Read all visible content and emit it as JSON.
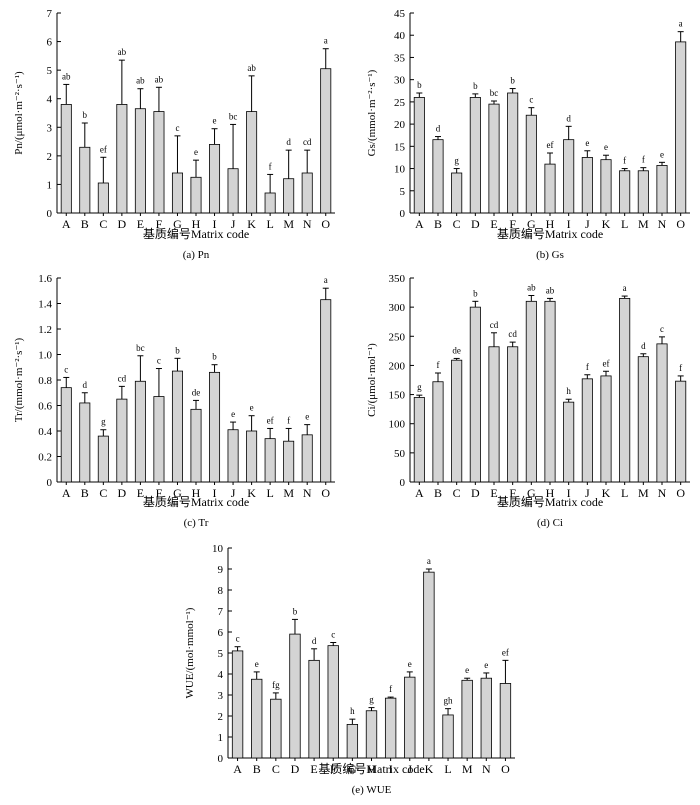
{
  "chart_data": [
    {
      "type": "bar",
      "caption": "(a) Pn",
      "y_label": "Pn/(μmol·m⁻²·s⁻¹)",
      "x_label": "基质编号Matrix code",
      "categories": [
        "A",
        "B",
        "C",
        "D",
        "E",
        "F",
        "G",
        "H",
        "I",
        "J",
        "K",
        "L",
        "M",
        "N",
        "O"
      ],
      "values": [
        3.8,
        2.3,
        1.05,
        3.8,
        3.65,
        3.55,
        1.4,
        1.25,
        2.4,
        1.55,
        3.55,
        0.7,
        1.2,
        1.4,
        5.05
      ],
      "errors": [
        0.7,
        0.85,
        0.9,
        1.55,
        0.7,
        0.85,
        1.3,
        0.6,
        0.55,
        1.55,
        1.25,
        0.65,
        1.0,
        0.8,
        0.7
      ],
      "letters": [
        "ab",
        "b",
        "ef",
        "ab",
        "ab",
        "ab",
        "c",
        "e",
        "e",
        "bc",
        "ab",
        "f",
        "d",
        "cd",
        "a"
      ],
      "ylim": [
        0,
        7
      ],
      "yticks": [
        0,
        1,
        2,
        3,
        4,
        5,
        6,
        7
      ],
      "color": "#d4d4d4"
    },
    {
      "type": "bar",
      "caption": "(b) Gs",
      "y_label": "Gs/(mmol·m⁻²·s⁻¹)",
      "x_label": "基质编号Matrix code",
      "categories": [
        "A",
        "B",
        "C",
        "D",
        "E",
        "F",
        "G",
        "H",
        "I",
        "J",
        "K",
        "L",
        "M",
        "N",
        "O"
      ],
      "values": [
        26,
        16.5,
        9,
        26,
        24.5,
        27,
        22,
        11,
        16.5,
        12.5,
        12,
        9.5,
        9.5,
        10.7,
        38.5
      ],
      "errors": [
        1,
        0.7,
        1,
        0.8,
        0.7,
        1,
        1.7,
        2.5,
        3,
        1.5,
        1,
        0.5,
        0.7,
        0.7,
        2.3
      ],
      "letters": [
        "b",
        "d",
        "g",
        "b",
        "bc",
        "b",
        "c",
        "ef",
        "d",
        "e",
        "e",
        "f",
        "f",
        "e",
        "a"
      ],
      "ylim": [
        0,
        45
      ],
      "yticks": [
        0,
        5,
        10,
        15,
        20,
        25,
        30,
        35,
        40,
        45
      ],
      "color": "#d4d4d4"
    },
    {
      "type": "bar",
      "caption": "(c) Tr",
      "y_label": "Tr/(mmol·m⁻²·s⁻¹)",
      "x_label": "基质编号Matrix code",
      "categories": [
        "A",
        "B",
        "C",
        "D",
        "E",
        "F",
        "G",
        "H",
        "I",
        "J",
        "K",
        "L",
        "M",
        "N",
        "O"
      ],
      "values": [
        0.74,
        0.62,
        0.36,
        0.65,
        0.79,
        0.67,
        0.87,
        0.57,
        0.86,
        0.41,
        0.4,
        0.34,
        0.32,
        0.37,
        1.43
      ],
      "errors": [
        0.08,
        0.08,
        0.05,
        0.1,
        0.2,
        0.22,
        0.1,
        0.07,
        0.06,
        0.06,
        0.12,
        0.08,
        0.1,
        0.08,
        0.09
      ],
      "letters": [
        "c",
        "d",
        "g",
        "cd",
        "bc",
        "c",
        "b",
        "de",
        "b",
        "e",
        "e",
        "ef",
        "f",
        "e",
        "a"
      ],
      "ylim": [
        0,
        1.6
      ],
      "yticks": [
        0,
        0.2,
        0.4,
        0.6,
        0.8,
        {
          "value": 1,
          "label": "1.0"
        },
        1.2,
        1.4,
        1.6
      ],
      "color": "#d4d4d4"
    },
    {
      "type": "bar",
      "caption": "(d) Ci",
      "y_label": "Ci/(μmol·mol⁻¹)",
      "x_label": "基质编号Matrix code",
      "categories": [
        "A",
        "B",
        "C",
        "D",
        "E",
        "F",
        "G",
        "H",
        "I",
        "J",
        "K",
        "L",
        "M",
        "N",
        "O"
      ],
      "values": [
        145,
        172,
        209,
        300,
        232,
        232,
        310,
        310,
        137,
        177,
        182,
        315,
        215,
        237,
        173
      ],
      "errors": [
        4,
        15,
        3,
        10,
        24,
        8,
        10,
        5,
        5,
        7,
        8,
        4,
        5,
        12,
        9
      ],
      "letters": [
        "g",
        "f",
        "de",
        "b",
        "cd",
        "cd",
        "ab",
        "ab",
        "h",
        "f",
        "ef",
        "a",
        "d",
        "c",
        "f"
      ],
      "ylim": [
        0,
        350
      ],
      "yticks": [
        0,
        50,
        100,
        150,
        200,
        250,
        300,
        350
      ],
      "color": "#d4d4d4"
    },
    {
      "type": "bar",
      "caption": "(e) WUE",
      "y_label": "WUE/(mol·mmol⁻¹)",
      "x_label": "基质编号Matrix code",
      "categories": [
        "A",
        "B",
        "C",
        "D",
        "E",
        "F",
        "G",
        "H",
        "I",
        "J",
        "K",
        "L",
        "M",
        "N",
        "O"
      ],
      "values": [
        5.1,
        3.75,
        2.8,
        5.9,
        4.65,
        5.35,
        1.6,
        2.25,
        2.85,
        3.85,
        8.85,
        2.05,
        3.7,
        3.8,
        3.55
      ],
      "errors": [
        0.2,
        0.35,
        0.3,
        0.7,
        0.55,
        0.15,
        0.25,
        0.15,
        0.05,
        0.25,
        0.15,
        0.3,
        0.1,
        0.25,
        1.1
      ],
      "letters": [
        "c",
        "e",
        "fg",
        "b",
        "d",
        "c",
        "h",
        "g",
        "f",
        "e",
        "a",
        "gh",
        "e",
        "e",
        "ef"
      ],
      "ylim": [
        0,
        10
      ],
      "yticks": [
        0,
        1,
        2,
        3,
        4,
        5,
        6,
        7,
        8,
        9,
        10
      ],
      "color": "#d4d4d4"
    }
  ]
}
